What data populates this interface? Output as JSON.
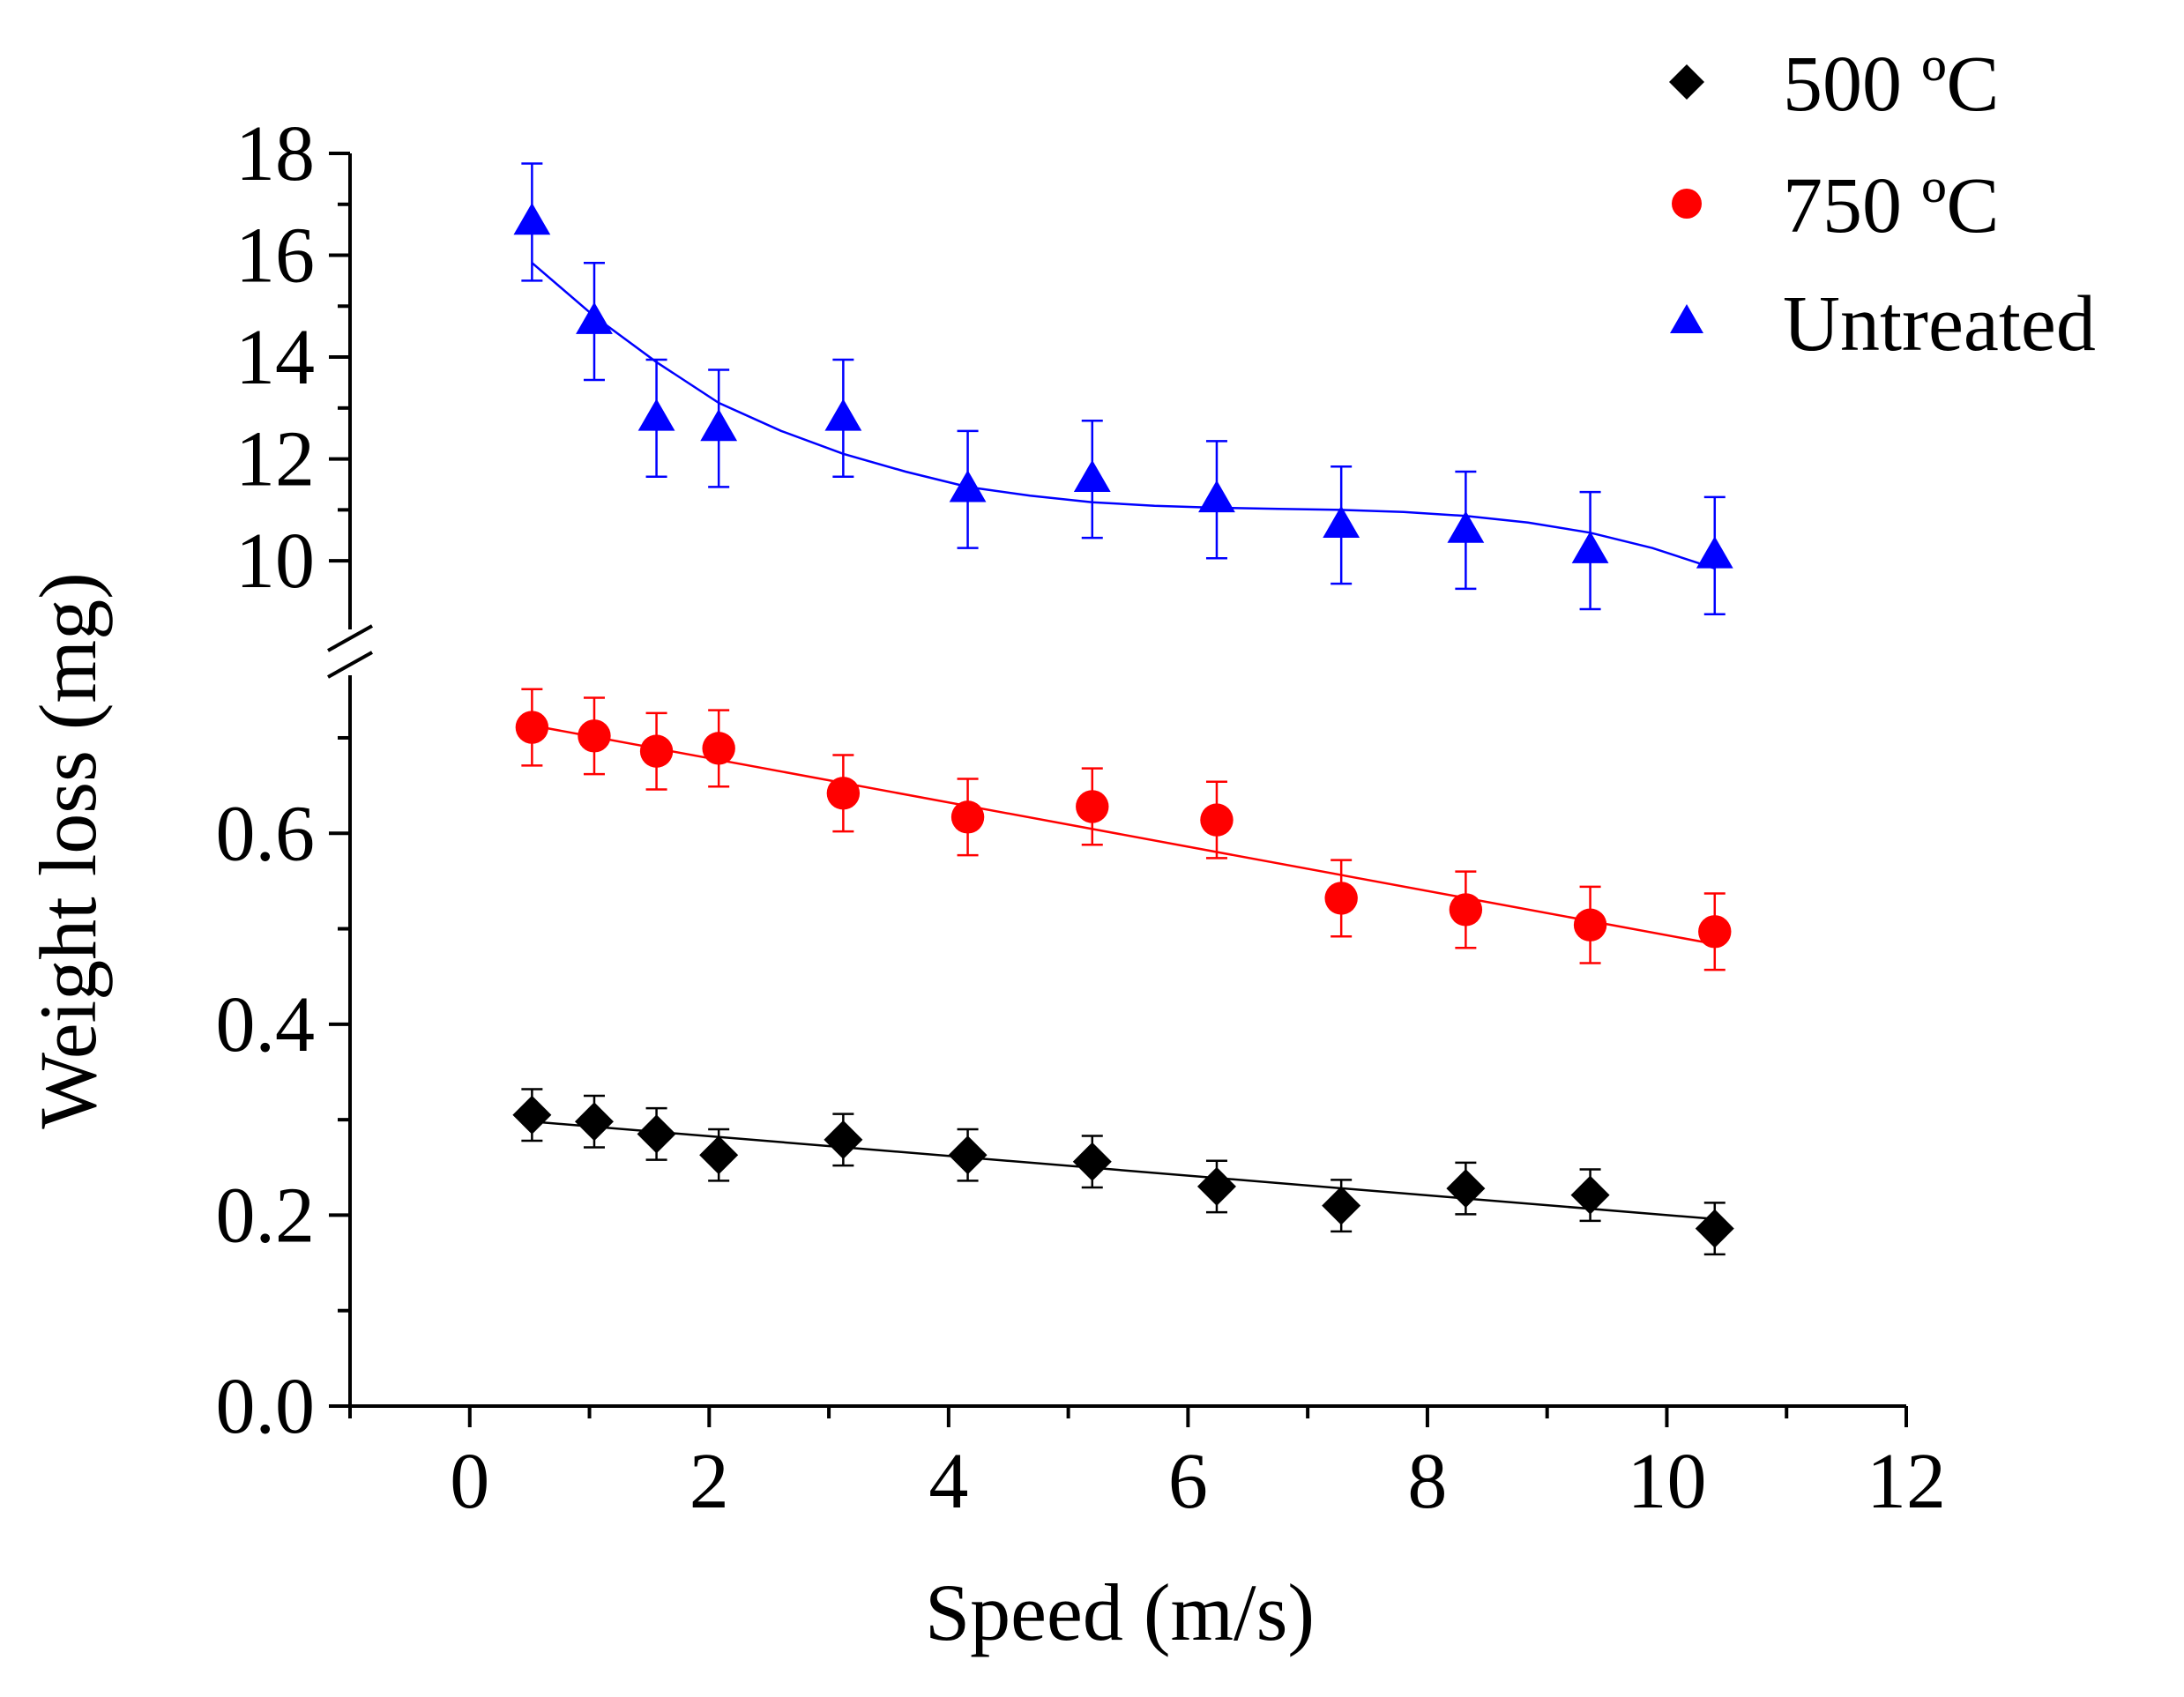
{
  "chart_data": {
    "type": "scatter",
    "xlabel": "Speed (m/s)",
    "ylabel": "Weight loss (mg)",
    "xlim": [
      -1,
      12
    ],
    "x_ticks": [
      "0",
      "2",
      "4",
      "6",
      "8",
      "10",
      "12"
    ],
    "y_axis_break": true,
    "y_lower": {
      "range": [
        0,
        0.76
      ],
      "ticks": [
        "0.0",
        "0.2",
        "0.4",
        "0.6"
      ]
    },
    "y_upper": {
      "range": [
        9.5,
        18
      ],
      "ticks": [
        "10",
        "12",
        "14",
        "16",
        "18"
      ]
    },
    "legend_position": "top-right",
    "x": [
      0.52,
      1.04,
      1.56,
      2.08,
      3.12,
      4.16,
      5.2,
      6.24,
      7.28,
      8.32,
      9.36,
      10.4
    ],
    "series": [
      {
        "name": "500 ºC",
        "marker": "diamond",
        "color": "#000000",
        "values": [
          0.305,
          0.298,
          0.285,
          0.263,
          0.279,
          0.263,
          0.256,
          0.23,
          0.21,
          0.228,
          0.221,
          0.186
        ],
        "errors": [
          0.027,
          0.027,
          0.027,
          0.027,
          0.027,
          0.027,
          0.027,
          0.027,
          0.027,
          0.027,
          0.027,
          0.027
        ],
        "fit": "linear",
        "fit_line": [
          [
            0.52,
            0.298
          ],
          [
            10.4,
            0.196
          ]
        ]
      },
      {
        "name": "750 ºC",
        "marker": "circle",
        "color": "#ff0000",
        "values": [
          0.711,
          0.702,
          0.686,
          0.689,
          0.642,
          0.617,
          0.628,
          0.614,
          0.532,
          0.52,
          0.504,
          0.497
        ],
        "errors": [
          0.04,
          0.04,
          0.04,
          0.04,
          0.04,
          0.04,
          0.04,
          0.04,
          0.04,
          0.04,
          0.04,
          0.04
        ],
        "fit": "linear",
        "fit_line": [
          [
            0.52,
            0.713
          ],
          [
            10.4,
            0.484
          ]
        ]
      },
      {
        "name": "Untreated",
        "marker": "triangle",
        "color": "#0000ff",
        "values": [
          16.65,
          14.7,
          12.8,
          12.6,
          12.8,
          11.4,
          11.6,
          11.2,
          10.7,
          10.6,
          10.2,
          10.1
        ],
        "errors": [
          1.15,
          1.15,
          1.15,
          1.15,
          1.15,
          1.15,
          1.15,
          1.15,
          1.15,
          1.15,
          1.15,
          1.15
        ],
        "fit": "polynomial",
        "fit_line": [
          [
            0.52,
            15.85
          ],
          [
            1.04,
            14.8
          ],
          [
            1.56,
            13.9
          ],
          [
            2.08,
            13.1
          ],
          [
            2.6,
            12.55
          ],
          [
            3.12,
            12.1
          ],
          [
            3.64,
            11.75
          ],
          [
            4.16,
            11.45
          ],
          [
            4.68,
            11.28
          ],
          [
            5.2,
            11.15
          ],
          [
            5.72,
            11.08
          ],
          [
            6.24,
            11.04
          ],
          [
            6.76,
            11.02
          ],
          [
            7.28,
            11.0
          ],
          [
            7.8,
            10.96
          ],
          [
            8.32,
            10.88
          ],
          [
            8.84,
            10.75
          ],
          [
            9.36,
            10.55
          ],
          [
            9.88,
            10.25
          ],
          [
            10.4,
            9.85
          ]
        ]
      }
    ]
  }
}
